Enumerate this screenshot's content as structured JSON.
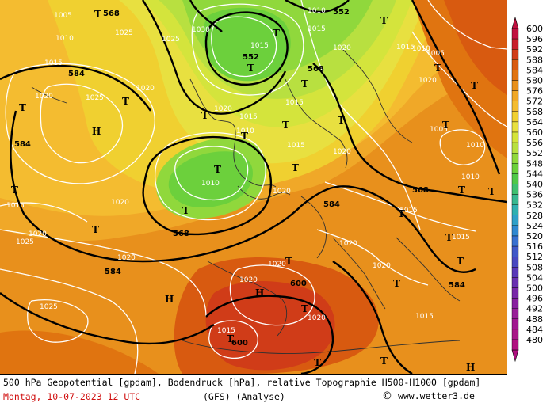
{
  "legend": {
    "values": [
      "600",
      "596",
      "592",
      "588",
      "584",
      "580",
      "576",
      "572",
      "568",
      "564",
      "560",
      "556",
      "552",
      "548",
      "544",
      "540",
      "536",
      "532",
      "528",
      "524",
      "520",
      "516",
      "512",
      "508",
      "504",
      "500",
      "496",
      "492",
      "488",
      "484",
      "480"
    ],
    "colors": [
      "#c01040",
      "#c8202c",
      "#d03c18",
      "#d85a10",
      "#e07410",
      "#e8901c",
      "#f0a828",
      "#f4bc30",
      "#f0d030",
      "#e8e040",
      "#d4e43c",
      "#b8e040",
      "#90d83c",
      "#6cd03c",
      "#50c848",
      "#40c070",
      "#38b890",
      "#30b0b0",
      "#30a0c8",
      "#3088d0",
      "#3870d0",
      "#4058c8",
      "#4848c0",
      "#5838b8",
      "#6830b0",
      "#7828a8",
      "#8820a0",
      "#982098",
      "#a01890",
      "#a81888",
      "#b01080"
    ]
  },
  "map": {
    "geopotential_labels": [
      "552",
      "552",
      "568",
      "568",
      "568",
      "584",
      "584",
      "584",
      "584",
      "584",
      "568",
      "600",
      "600",
      "588"
    ],
    "pressure_labels": [
      "1005",
      "1010",
      "1015",
      "1020",
      "1025",
      "1030",
      "1025",
      "1015",
      "1010",
      "1020",
      "1025",
      "1015",
      "1020",
      "1010",
      "1015",
      "1020",
      "1025",
      "1020",
      "1015",
      "1020",
      "1010",
      "1015",
      "1020",
      "1015",
      "1005",
      "1010",
      "1015",
      "1020",
      "1025",
      "1015",
      "1020",
      "1020",
      "1010",
      "1005",
      "1010",
      "1020",
      "1015",
      "1020",
      "1020",
      "1020",
      "1015",
      "1015",
      "1020"
    ],
    "low_symbol": "T",
    "high_symbol": "H"
  },
  "caption": {
    "title": "500 hPa Geopotential [gpdam], Bodendruck [hPa], relative Topographie H500-H1000 [gpdam]",
    "date": "Montag, 10-07-2023  12 UTC",
    "model": "(GFS)  (Analyse)",
    "copyright_symbol": "©",
    "credit": "www.wetter3.de"
  }
}
